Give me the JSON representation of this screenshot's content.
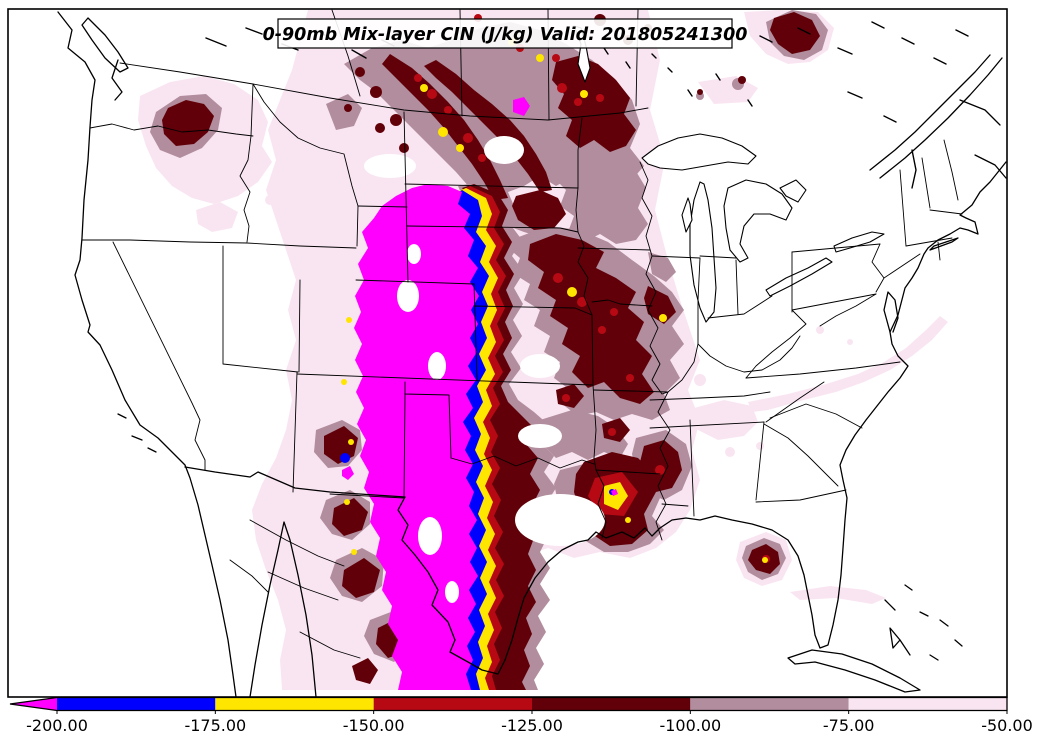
{
  "title": {
    "text": "0-90mb Mix-layer CIN (J/kg) Valid: 201805241300"
  },
  "palette": {
    "extreme": "#FF00FF",
    "blue": "#0000FF",
    "yellow": "#FFE600",
    "red": "#B60914",
    "maroon": "#610008",
    "mauve": "#B18D9D",
    "pink": "#F9E5F1",
    "land": "#FFFFFF",
    "border": "#000000"
  },
  "colorbar": {
    "tick_labels": [
      "-200.00",
      "-175.00",
      "-150.00",
      "-125.00",
      "-100.00",
      "-75.00",
      "-50.00"
    ],
    "segment_colors": [
      "#0000FF",
      "#FFE600",
      "#B60914",
      "#610008",
      "#B18D9D",
      "#F9E5F1"
    ],
    "arrow_color": "#FF00FF"
  },
  "chart_data": {
    "type": "heatmap",
    "subtype": "filled-contour-weather-map",
    "title": "0-90mb Mix-layer CIN (J/kg) Valid: 201805241300",
    "variable": "0-90mb Mix-layer CIN",
    "units": "J/kg",
    "valid_time": "201805241300",
    "levels": [
      -200,
      -175,
      -150,
      -125,
      -100,
      -75,
      -50
    ],
    "tick_labels": [
      "-200.00",
      "-175.00",
      "-150.00",
      "-125.00",
      "-100.00",
      "-75.00",
      "-50.00"
    ],
    "fill_colors_low_to_high": [
      "#FF00FF",
      "#0000FF",
      "#FFE600",
      "#B60914",
      "#610008",
      "#B18D9D",
      "#F9E5F1"
    ],
    "colorbar_extend_below_min": true,
    "legend_position": "bottom",
    "region": "Continental United States"
  }
}
